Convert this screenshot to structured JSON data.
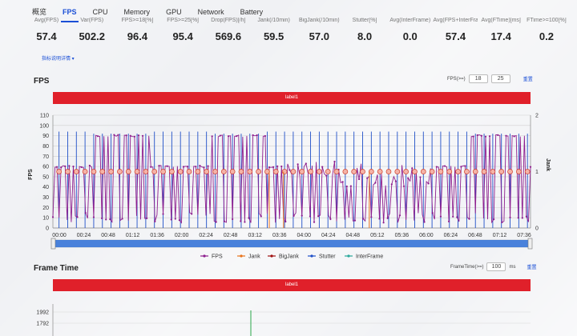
{
  "tabs": [
    "概览",
    "FPS",
    "CPU",
    "Memory",
    "GPU",
    "Network",
    "Battery"
  ],
  "active_tab": "FPS",
  "stats": [
    {
      "label": "Avg(FPS)",
      "value": "57.4"
    },
    {
      "label": "Var(FPS)",
      "value": "502.2"
    },
    {
      "label": "FPS>=18[%]",
      "value": "96.4"
    },
    {
      "label": "FPS>=25[%]",
      "value": "95.4"
    },
    {
      "label": "Drop(FPS)[/h]",
      "value": "569.6"
    },
    {
      "label": "Jank(/10min)",
      "value": "59.5"
    },
    {
      "label": "BigJank(/10min)",
      "value": "57.0"
    },
    {
      "label": "Stutter[%]",
      "value": "8.0"
    },
    {
      "label": "Avg(InterFrame)",
      "value": "0.0"
    },
    {
      "label": "Avg(FPS+InterFrame)",
      "value": "57.4"
    },
    {
      "label": "Avg(FTime)[ms]",
      "value": "17.4"
    },
    {
      "label": "FTime>=100[%]",
      "value": "0.2"
    }
  ],
  "stats_link": "指标说明详情 ▾",
  "fps_section": {
    "title": "FPS",
    "control_label": "FPS(>=)",
    "threshold_1": "18",
    "threshold_2": "25",
    "reset": "重置",
    "label_bar": "label1"
  },
  "frametime_section": {
    "title": "Frame Time",
    "control_label": "FrameTime(>=)",
    "threshold": "100",
    "unit": "ms",
    "reset": "重置",
    "label_bar": "label1"
  },
  "chart_data": [
    {
      "type": "line",
      "xlabel": "",
      "ylabel": "FPS",
      "y2label": "Jank",
      "ylim": [
        0,
        110
      ],
      "y_ticks": [
        0,
        10,
        20,
        30,
        40,
        50,
        60,
        70,
        80,
        90,
        100,
        110
      ],
      "y2lim": [
        0,
        2
      ],
      "y2_ticks": [
        0,
        1,
        2
      ],
      "x_ticks": [
        "00:00",
        "00:24",
        "00:48",
        "01:12",
        "01:36",
        "02:00",
        "02:24",
        "02:48",
        "03:12",
        "03:36",
        "04:00",
        "04:24",
        "04:48",
        "05:12",
        "05:36",
        "06:00",
        "06:24",
        "06:48",
        "07:12",
        "07:36"
      ],
      "legend": [
        "FPS",
        "Jank",
        "BigJank",
        "Stutter",
        "InterFrame"
      ],
      "legend_colors": [
        "#8e1e8e",
        "#e8731a",
        "#a01010",
        "#1f4fc8",
        "#2aa89a"
      ],
      "fps_segments": [
        {
          "from_sec": 0,
          "to_sec": 40,
          "level": 60
        },
        {
          "from_sec": 40,
          "to_sec": 95,
          "level": 90
        },
        {
          "from_sec": 95,
          "to_sec": 155,
          "level": 60
        },
        {
          "from_sec": 155,
          "to_sec": 210,
          "level": 90
        },
        {
          "from_sec": 210,
          "to_sec": 230,
          "level": 60
        },
        {
          "from_sec": 230,
          "to_sec": 375,
          "level": 50
        },
        {
          "from_sec": 375,
          "to_sec": 410,
          "level": 60
        },
        {
          "from_sec": 410,
          "to_sec": 468,
          "level": 90
        }
      ],
      "duration_sec": 468
    },
    {
      "type": "line",
      "ylabel": "",
      "y_ticks": [
        1992,
        1792
      ]
    }
  ]
}
